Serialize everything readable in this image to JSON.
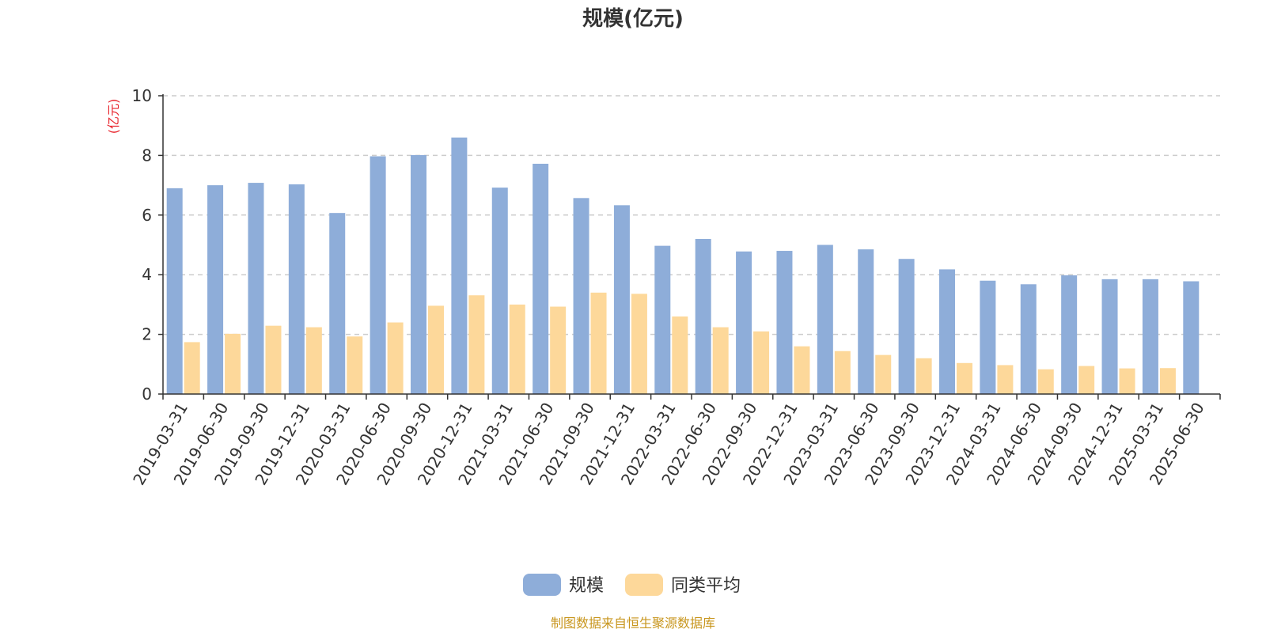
{
  "chart_data": {
    "type": "bar",
    "title": "规模(亿元)",
    "ylabel": "(亿元)",
    "xlabel": "",
    "ylim": [
      0,
      10
    ],
    "yticks": [
      0,
      2,
      4,
      6,
      8,
      10
    ],
    "grid": true,
    "legend_position": "bottom-center",
    "categories": [
      "2019-03-31",
      "2019-06-30",
      "2019-09-30",
      "2019-12-31",
      "2020-03-31",
      "2020-06-30",
      "2020-09-30",
      "2020-12-31",
      "2021-03-31",
      "2021-06-30",
      "2021-09-30",
      "2021-12-31",
      "2022-03-31",
      "2022-06-30",
      "2022-09-30",
      "2022-12-31",
      "2023-03-31",
      "2023-06-30",
      "2023-09-30",
      "2023-12-31",
      "2024-03-31",
      "2024-06-30",
      "2024-09-30",
      "2024-12-31",
      "2025-03-31",
      "2025-06-30"
    ],
    "series": [
      {
        "name": "规模",
        "color": "#8eadd9",
        "values": [
          6.9,
          7.0,
          7.08,
          7.03,
          6.07,
          7.97,
          8.01,
          8.6,
          6.92,
          7.72,
          6.57,
          6.33,
          4.97,
          5.2,
          4.78,
          4.8,
          5.0,
          4.85,
          4.53,
          4.18,
          3.8,
          3.68,
          3.98,
          3.85,
          3.85,
          3.78
        ]
      },
      {
        "name": "同类平均",
        "color": "#fdd89a",
        "values": [
          1.74,
          2.02,
          2.29,
          2.24,
          1.93,
          2.4,
          2.96,
          3.31,
          3.0,
          2.93,
          3.4,
          3.36,
          2.6,
          2.24,
          2.1,
          1.6,
          1.44,
          1.31,
          1.2,
          1.04,
          0.97,
          0.83,
          0.94,
          0.86,
          0.87,
          null
        ]
      }
    ]
  },
  "colors": {
    "axis": "#333333",
    "grid": "#cccccc",
    "unit_label": "#e8262e",
    "source_text": "#c8961e",
    "title": "#333333"
  },
  "source": {
    "text": "制图数据来自恒生聚源数据库"
  }
}
